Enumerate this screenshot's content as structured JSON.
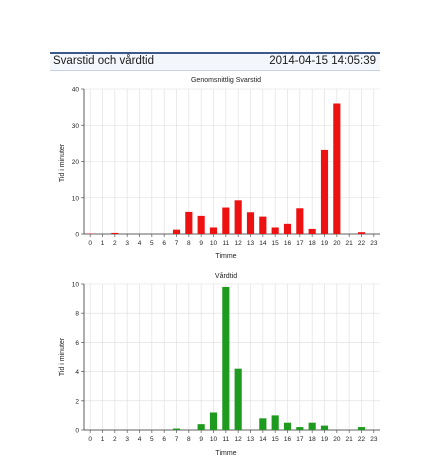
{
  "header": {
    "title": "Svarstid och vårdtid",
    "timestamp": "2014-04-15 14:05:39"
  },
  "chart_data": [
    {
      "type": "bar",
      "title": "Genomsnittlig Svarstid",
      "xlabel": "Timme",
      "ylabel": "Tid i minuter",
      "categories": [
        "0",
        "1",
        "2",
        "3",
        "4",
        "5",
        "6",
        "7",
        "8",
        "9",
        "10",
        "11",
        "12",
        "13",
        "14",
        "15",
        "16",
        "17",
        "18",
        "19",
        "20",
        "21",
        "22",
        "23"
      ],
      "values": [
        0.1,
        0,
        0.3,
        0,
        0,
        0,
        0,
        1.2,
        6.1,
        5.0,
        1.8,
        7.3,
        9.3,
        6.0,
        4.8,
        1.8,
        2.8,
        7.1,
        1.4,
        23.2,
        36.0,
        0,
        0.5,
        0
      ],
      "ylim": [
        0,
        40
      ],
      "yticks": [
        0,
        10,
        20,
        30,
        40
      ],
      "color": "#ee1111",
      "grid": true
    },
    {
      "type": "bar",
      "title": "Vårdtid",
      "xlabel": "Timme",
      "ylabel": "Tid i minuter",
      "categories": [
        "0",
        "1",
        "2",
        "3",
        "4",
        "5",
        "6",
        "7",
        "8",
        "9",
        "10",
        "11",
        "12",
        "13",
        "14",
        "15",
        "16",
        "17",
        "18",
        "19",
        "20",
        "21",
        "22",
        "23"
      ],
      "values": [
        0,
        0,
        0,
        0,
        0,
        0,
        0,
        0.1,
        0,
        0.4,
        1.2,
        9.8,
        4.2,
        0,
        0.8,
        1.0,
        0.5,
        0.2,
        0.5,
        0.3,
        0,
        0,
        0.2,
        0
      ],
      "ylim": [
        0,
        10
      ],
      "yticks": [
        0,
        2,
        4,
        6,
        8,
        10
      ],
      "color": "#1e9a1e",
      "grid": true
    }
  ]
}
